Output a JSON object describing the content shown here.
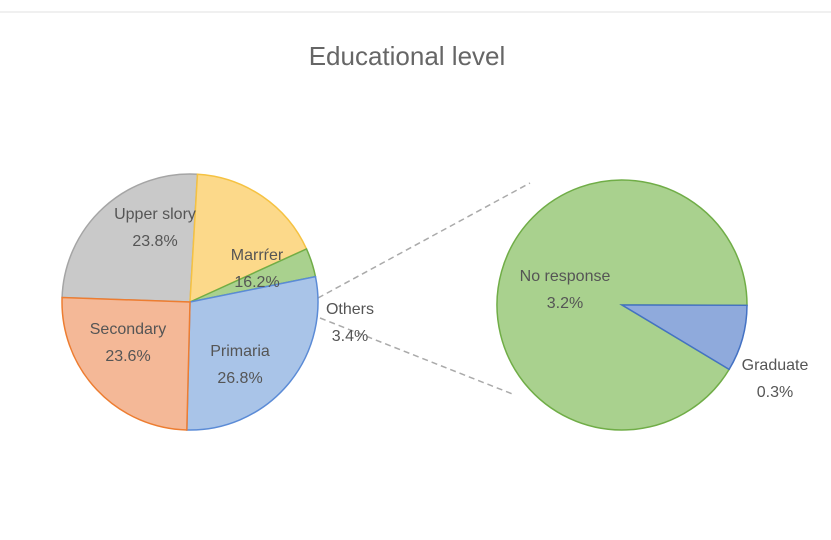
{
  "chart_data": [
    {
      "type": "pie",
      "title": "Educational level",
      "categories": [
        "Upper slory",
        "Marrŕer",
        "Others",
        "Primaria",
        "Secondary"
      ],
      "values": [
        23.8,
        16.2,
        3.4,
        26.8,
        23.6
      ],
      "value_labels": [
        "23.8%",
        "16.2%",
        "3.4%",
        "26.8%",
        "23.6%"
      ],
      "colors": [
        "#c9c9c9",
        "#fcd98a",
        "#a9d18e",
        "#a9c4e8",
        "#f4b897"
      ],
      "edge_colors": [
        "#a5a5a5",
        "#f5c242",
        "#70ad47",
        "#5b8bd6",
        "#ed7d31"
      ]
    },
    {
      "type": "pie",
      "categories": [
        "No response",
        "Graduate"
      ],
      "values": [
        3.2,
        0.3
      ],
      "value_labels": [
        "3.2%",
        "0.3%"
      ],
      "colors": [
        "#a9d18e",
        "#8faadc"
      ],
      "edge_colors": [
        "#70ad47",
        "#4472c4"
      ]
    }
  ]
}
